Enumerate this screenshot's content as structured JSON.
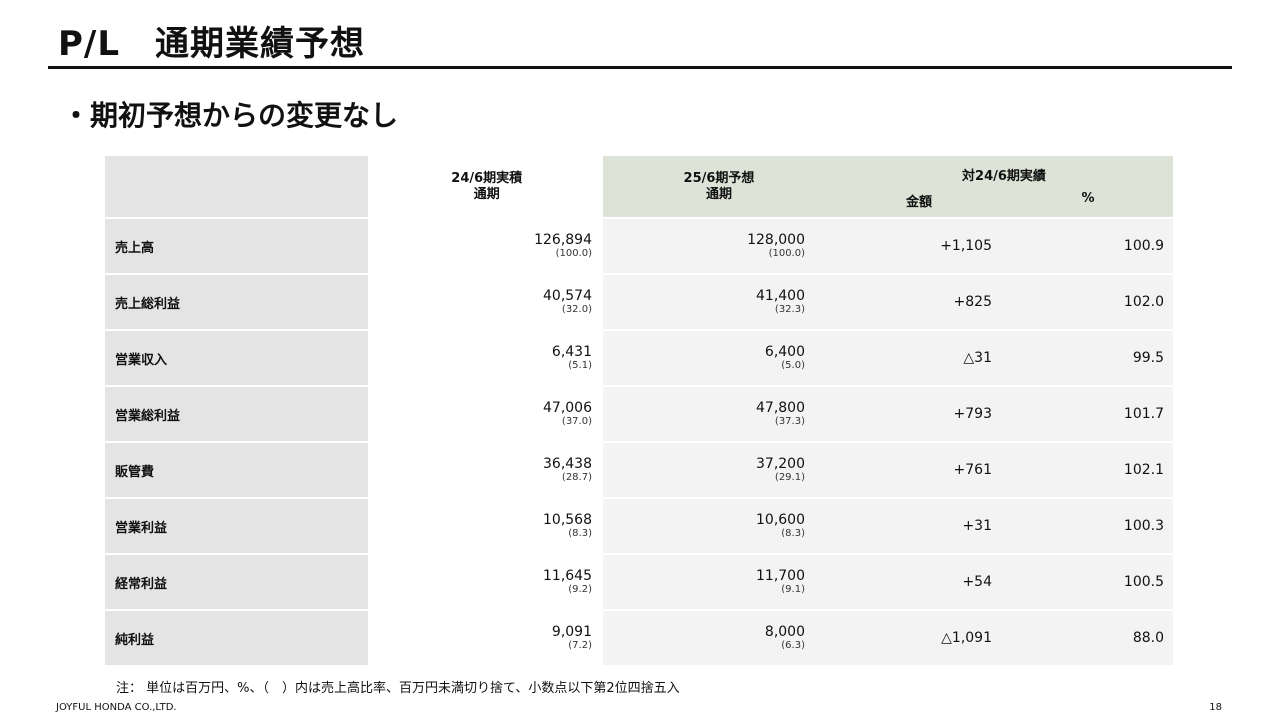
{
  "slide": {
    "title": "P/L　通期業績予想",
    "subtitle": "・期初予想からの変更なし",
    "note": "注： 単位は百万円、%、（　）内は売上高比率、百万円未満切り捨て、小数点以下第2位四捨五入",
    "company": "JOYFUL HONDA CO.,LTD.",
    "page_number": "18"
  },
  "table": {
    "header": {
      "col_a_line1": "24/6期実積",
      "col_a_line2": "通期",
      "col_b_line1": "25/6期予想",
      "col_b_line2": "通期",
      "col_cd_group": "対24/6期実績",
      "col_c": "金額",
      "col_d": "%"
    },
    "rows": [
      {
        "label": "売上高",
        "a": "126,894",
        "a_ratio": "(100.0)",
        "b": "128,000",
        "b_ratio": "(100.0)",
        "diff": "+1,105",
        "pct": "100.9"
      },
      {
        "label": "売上総利益",
        "a": "40,574",
        "a_ratio": "(32.0)",
        "b": "41,400",
        "b_ratio": "(32.3)",
        "diff": "+825",
        "pct": "102.0"
      },
      {
        "label": "営業収入",
        "a": "6,431",
        "a_ratio": "(5.1)",
        "b": "6,400",
        "b_ratio": "(5.0)",
        "diff": "△31",
        "pct": "99.5"
      },
      {
        "label": "営業総利益",
        "a": "47,006",
        "a_ratio": "(37.0)",
        "b": "47,800",
        "b_ratio": "(37.3)",
        "diff": "+793",
        "pct": "101.7"
      },
      {
        "label": "販管費",
        "a": "36,438",
        "a_ratio": "(28.7)",
        "b": "37,200",
        "b_ratio": "(29.1)",
        "diff": "+761",
        "pct": "102.1"
      },
      {
        "label": "営業利益",
        "a": "10,568",
        "a_ratio": "(8.3)",
        "b": "10,600",
        "b_ratio": "(8.3)",
        "diff": "+31",
        "pct": "100.3"
      },
      {
        "label": "経常利益",
        "a": "11,645",
        "a_ratio": "(9.2)",
        "b": "11,700",
        "b_ratio": "(9.1)",
        "diff": "+54",
        "pct": "100.5"
      },
      {
        "label": "純利益",
        "a": "9,091",
        "a_ratio": "(7.2)",
        "b": "8,000",
        "b_ratio": "(6.3)",
        "diff": "△1,091",
        "pct": "88.0"
      }
    ]
  },
  "colors": {
    "label_bg": "#e4e4e4",
    "forecast_header_bg": "#dde3d6",
    "forecast_cell_bg": "#f3f3f3",
    "rule": "#111111"
  }
}
